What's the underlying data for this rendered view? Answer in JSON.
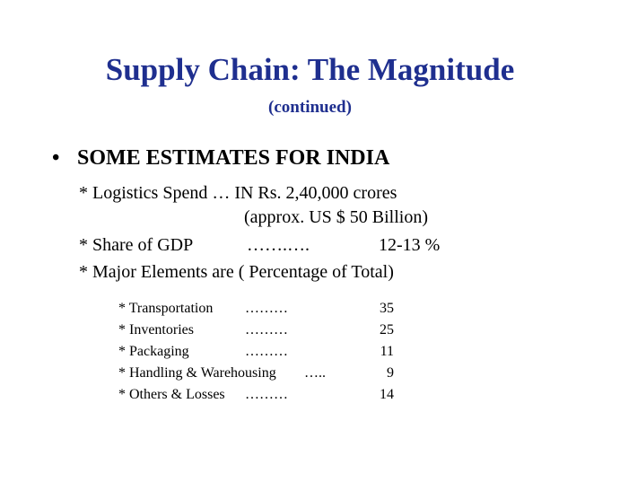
{
  "slide": {
    "title": "Supply Chain: The Magnitude",
    "subtitle": "(continued)",
    "bullet_symbol": "•",
    "bullet_heading": "SOME ESTIMATES FOR INDIA",
    "lines": {
      "logistics_spend": "* Logistics Spend … IN Rs. 2,40,000 crores",
      "logistics_approx": "(approx. US $ 50 Billion)",
      "gdp_label": "* Share of GDP",
      "gdp_dots": "…….….",
      "gdp_value": "12-13 %",
      "major_elements": "* Major Elements are ( Percentage of Total)"
    },
    "elements": [
      {
        "label": "* Transportation",
        "dots": "………",
        "value": "35"
      },
      {
        "label": "* Inventories",
        "dots": "………",
        "value": "25"
      },
      {
        "label": "* Packaging",
        "dots": "………",
        "value": "11"
      },
      {
        "label": "* Handling & Warehousing",
        "dots": "…..",
        "value": "9"
      },
      {
        "label": "* Others & Losses",
        "dots": "………",
        "value": "14"
      }
    ]
  }
}
